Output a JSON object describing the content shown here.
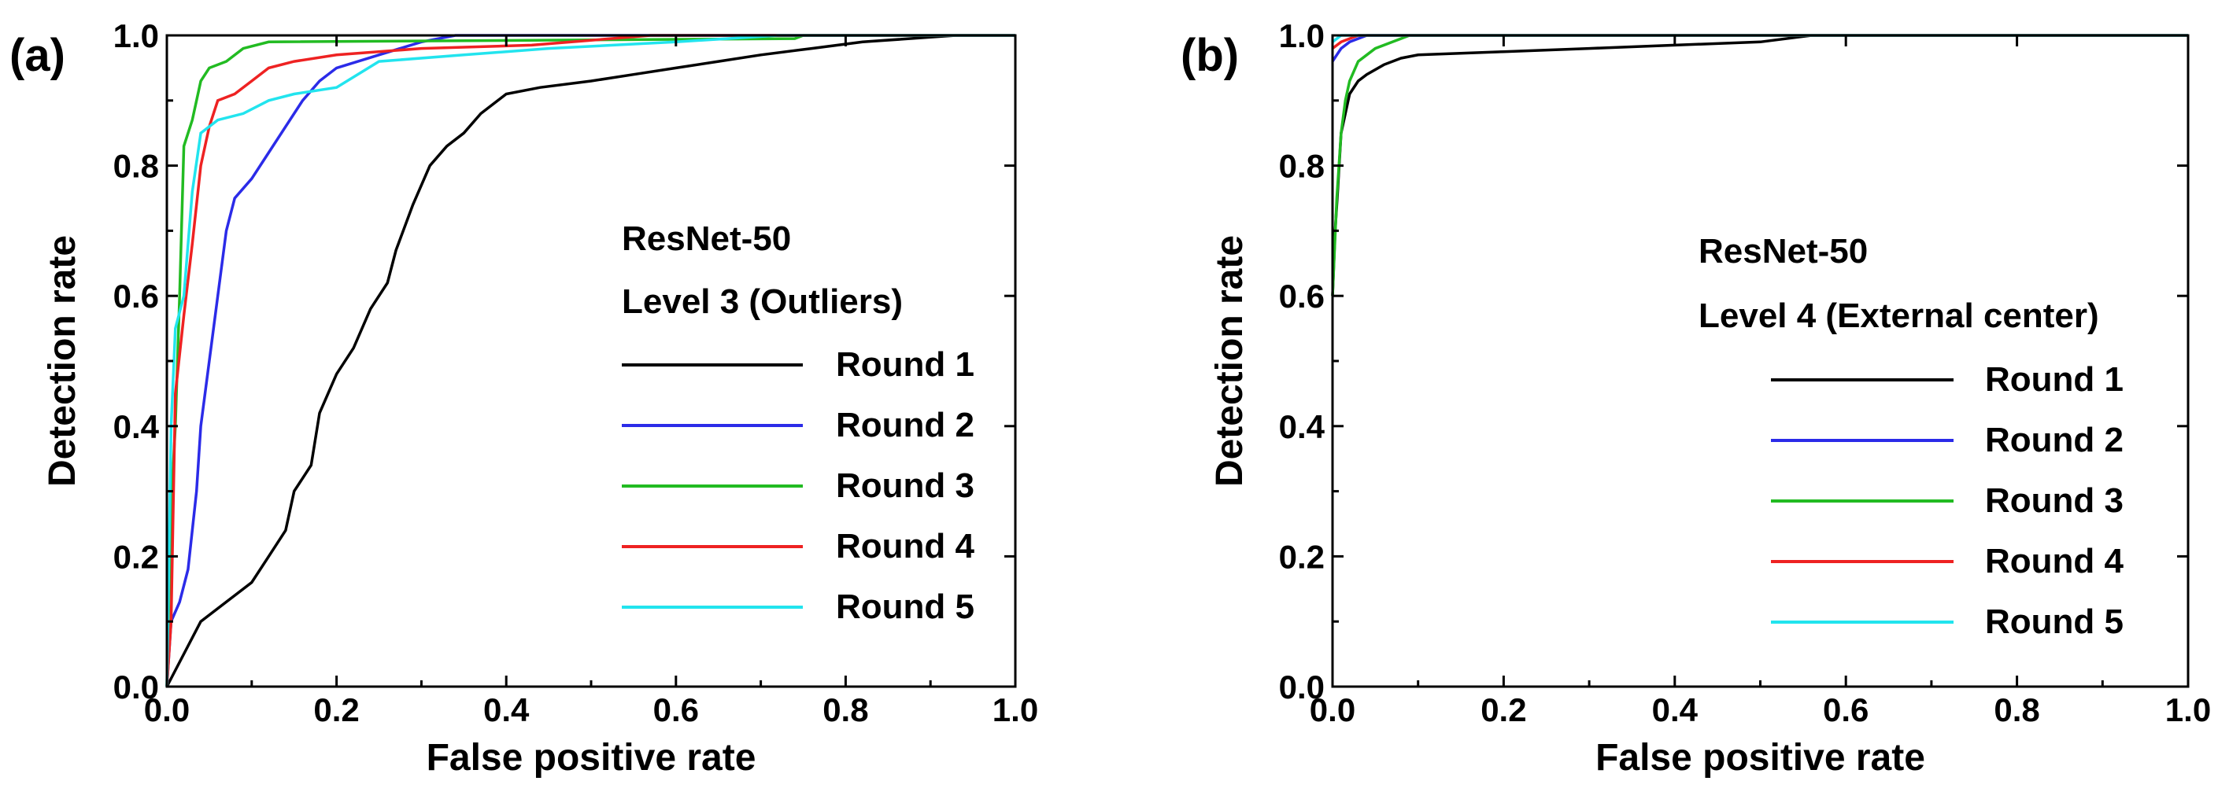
{
  "chart_data": [
    {
      "type": "line",
      "panel_label": "(a)",
      "xlabel": "False positive rate",
      "ylabel": "Detection rate",
      "xlim": [
        0,
        1
      ],
      "ylim": [
        0,
        1
      ],
      "x_ticks": [
        "0.0",
        "0.2",
        "0.4",
        "0.6",
        "0.8",
        "1.0"
      ],
      "y_ticks": [
        "0.0",
        "0.2",
        "0.4",
        "0.6",
        "0.8",
        "1.0"
      ],
      "legend_title_lines": [
        "ResNet-50",
        "Level 3 (Outliers)"
      ],
      "legend_location": "center-right",
      "series": [
        {
          "name": "Round 1",
          "color": "#000000",
          "points": [
            [
              0,
              0
            ],
            [
              0.04,
              0.1
            ],
            [
              0.08,
              0.14
            ],
            [
              0.1,
              0.16
            ],
            [
              0.12,
              0.2
            ],
            [
              0.14,
              0.24
            ],
            [
              0.15,
              0.3
            ],
            [
              0.17,
              0.34
            ],
            [
              0.18,
              0.42
            ],
            [
              0.2,
              0.48
            ],
            [
              0.22,
              0.52
            ],
            [
              0.24,
              0.58
            ],
            [
              0.26,
              0.62
            ],
            [
              0.27,
              0.67
            ],
            [
              0.29,
              0.74
            ],
            [
              0.31,
              0.8
            ],
            [
              0.33,
              0.83
            ],
            [
              0.35,
              0.85
            ],
            [
              0.37,
              0.88
            ],
            [
              0.4,
              0.91
            ],
            [
              0.44,
              0.92
            ],
            [
              0.5,
              0.93
            ],
            [
              0.55,
              0.94
            ],
            [
              0.6,
              0.95
            ],
            [
              0.65,
              0.96
            ],
            [
              0.7,
              0.97
            ],
            [
              0.76,
              0.98
            ],
            [
              0.82,
              0.99
            ],
            [
              0.93,
              1.0
            ],
            [
              1.0,
              1.0
            ]
          ]
        },
        {
          "name": "Round 2",
          "color": "#2b2be8",
          "points": [
            [
              0,
              0
            ],
            [
              0.005,
              0.1
            ],
            [
              0.015,
              0.13
            ],
            [
              0.025,
              0.18
            ],
            [
              0.035,
              0.3
            ],
            [
              0.04,
              0.4
            ],
            [
              0.05,
              0.5
            ],
            [
              0.06,
              0.6
            ],
            [
              0.07,
              0.7
            ],
            [
              0.08,
              0.75
            ],
            [
              0.1,
              0.78
            ],
            [
              0.12,
              0.82
            ],
            [
              0.14,
              0.86
            ],
            [
              0.16,
              0.9
            ],
            [
              0.18,
              0.93
            ],
            [
              0.2,
              0.95
            ],
            [
              0.25,
              0.97
            ],
            [
              0.3,
              0.99
            ],
            [
              0.34,
              1.0
            ],
            [
              1.0,
              1.0
            ]
          ]
        },
        {
          "name": "Round 3",
          "color": "#22bb22",
          "points": [
            [
              0,
              0
            ],
            [
              0.005,
              0.28
            ],
            [
              0.01,
              0.4
            ],
            [
              0.015,
              0.6
            ],
            [
              0.02,
              0.83
            ],
            [
              0.03,
              0.87
            ],
            [
              0.04,
              0.93
            ],
            [
              0.05,
              0.95
            ],
            [
              0.07,
              0.96
            ],
            [
              0.09,
              0.98
            ],
            [
              0.12,
              0.99
            ],
            [
              0.74,
              0.995
            ],
            [
              0.75,
              1.0
            ],
            [
              1.0,
              1.0
            ]
          ]
        },
        {
          "name": "Round 4",
          "color": "#ee2222",
          "points": [
            [
              0,
              0
            ],
            [
              0.005,
              0.1
            ],
            [
              0.01,
              0.45
            ],
            [
              0.02,
              0.57
            ],
            [
              0.03,
              0.68
            ],
            [
              0.04,
              0.8
            ],
            [
              0.05,
              0.86
            ],
            [
              0.06,
              0.9
            ],
            [
              0.08,
              0.91
            ],
            [
              0.1,
              0.93
            ],
            [
              0.12,
              0.95
            ],
            [
              0.15,
              0.96
            ],
            [
              0.2,
              0.97
            ],
            [
              0.3,
              0.98
            ],
            [
              0.43,
              0.985
            ],
            [
              0.57,
              1.0
            ],
            [
              1.0,
              1.0
            ]
          ]
        },
        {
          "name": "Round 5",
          "color": "#22e4ee",
          "points": [
            [
              0,
              0
            ],
            [
              0.005,
              0.4
            ],
            [
              0.01,
              0.55
            ],
            [
              0.02,
              0.6
            ],
            [
              0.03,
              0.76
            ],
            [
              0.04,
              0.85
            ],
            [
              0.06,
              0.87
            ],
            [
              0.09,
              0.88
            ],
            [
              0.12,
              0.9
            ],
            [
              0.15,
              0.91
            ],
            [
              0.2,
              0.92
            ],
            [
              0.25,
              0.96
            ],
            [
              0.35,
              0.97
            ],
            [
              0.45,
              0.98
            ],
            [
              0.6,
              0.99
            ],
            [
              0.72,
              1.0
            ],
            [
              1.0,
              1.0
            ]
          ]
        }
      ]
    },
    {
      "type": "line",
      "panel_label": "(b)",
      "xlabel": "False positive rate",
      "ylabel": "Detection rate",
      "xlim": [
        0,
        1
      ],
      "ylim": [
        0,
        1
      ],
      "x_ticks": [
        "0.0",
        "0.2",
        "0.4",
        "0.6",
        "0.8",
        "1.0"
      ],
      "y_ticks": [
        "0.0",
        "0.2",
        "0.4",
        "0.6",
        "0.8",
        "1.0"
      ],
      "legend_title_lines": [
        "ResNet-50",
        "Level 4 (External center)"
      ],
      "legend_location": "center-right",
      "series": [
        {
          "name": "Round 1",
          "color": "#000000",
          "points": [
            [
              0,
              0.6
            ],
            [
              0.003,
              0.7
            ],
            [
              0.006,
              0.76
            ],
            [
              0.01,
              0.85
            ],
            [
              0.015,
              0.88
            ],
            [
              0.02,
              0.91
            ],
            [
              0.03,
              0.93
            ],
            [
              0.04,
              0.94
            ],
            [
              0.06,
              0.955
            ],
            [
              0.08,
              0.965
            ],
            [
              0.1,
              0.97
            ],
            [
              0.2,
              0.975
            ],
            [
              0.3,
              0.98
            ],
            [
              0.4,
              0.985
            ],
            [
              0.5,
              0.99
            ],
            [
              0.56,
              1.0
            ],
            [
              1.0,
              1.0
            ]
          ]
        },
        {
          "name": "Round 2",
          "color": "#2b2be8",
          "points": [
            [
              0,
              0.96
            ],
            [
              0.005,
              0.97
            ],
            [
              0.01,
              0.98
            ],
            [
              0.02,
              0.99
            ],
            [
              0.04,
              1.0
            ],
            [
              1.0,
              1.0
            ]
          ]
        },
        {
          "name": "Round 3",
          "color": "#22bb22",
          "points": [
            [
              0,
              0.6
            ],
            [
              0.005,
              0.75
            ],
            [
              0.01,
              0.85
            ],
            [
              0.015,
              0.9
            ],
            [
              0.02,
              0.93
            ],
            [
              0.03,
              0.96
            ],
            [
              0.04,
              0.97
            ],
            [
              0.05,
              0.98
            ],
            [
              0.07,
              0.99
            ],
            [
              0.09,
              1.0
            ],
            [
              1.0,
              1.0
            ]
          ]
        },
        {
          "name": "Round 4",
          "color": "#ee2222",
          "points": [
            [
              0,
              0.98
            ],
            [
              0.01,
              0.99
            ],
            [
              0.03,
              1.0
            ],
            [
              0.08,
              1.0
            ],
            [
              1.0,
              1.0
            ]
          ]
        },
        {
          "name": "Round 5",
          "color": "#22e4ee",
          "points": [
            [
              0,
              0.99
            ],
            [
              0.01,
              1.0
            ],
            [
              1.0,
              1.0
            ]
          ]
        }
      ]
    }
  ]
}
